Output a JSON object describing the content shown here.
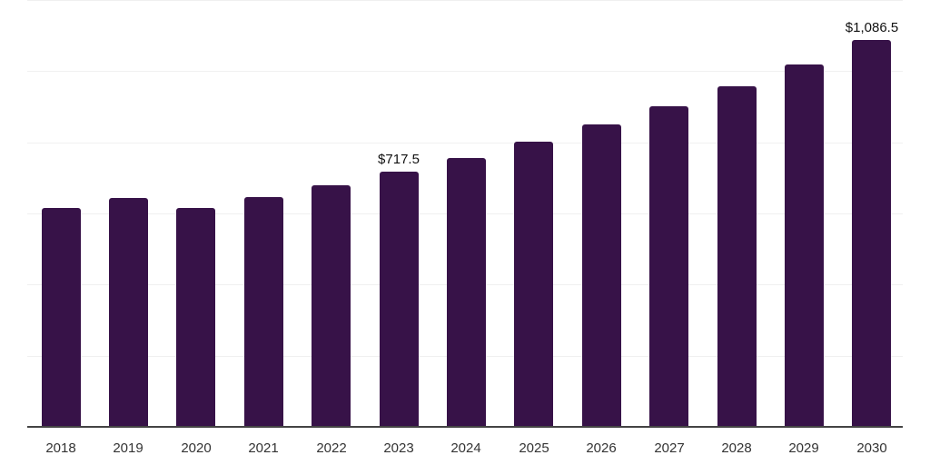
{
  "chart_data": {
    "type": "bar",
    "title": "",
    "xlabel": "",
    "ylabel": "",
    "categories": [
      "2018",
      "2019",
      "2020",
      "2021",
      "2022",
      "2023",
      "2024",
      "2025",
      "2026",
      "2027",
      "2028",
      "2029",
      "2030"
    ],
    "values": [
      616,
      644,
      616,
      646,
      680,
      717.5,
      756,
      802,
      851,
      902,
      958,
      1019,
      1086.5
    ],
    "data_labels": [
      {
        "category": "2023",
        "text": "$717.5"
      },
      {
        "category": "2030",
        "text": "$1,086.5"
      }
    ],
    "ylim": [
      0,
      1200
    ],
    "y_grid_step": 200,
    "grid": true,
    "y_tick_labels_visible": false,
    "legend": null,
    "bar_color": "#371248",
    "axis_color": "#444444",
    "grid_color": "#f0f0f0"
  }
}
